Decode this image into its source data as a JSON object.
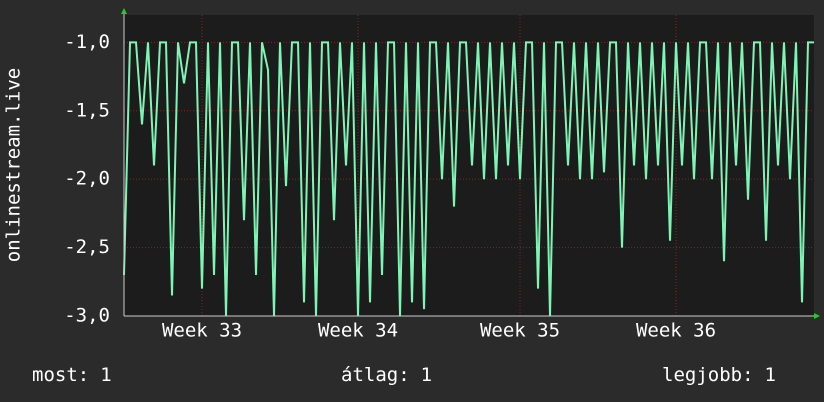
{
  "chart_data": {
    "type": "line",
    "ylabel": "onlinestream.live",
    "color": "#7ff5b5",
    "values": [
      -2.7,
      -1,
      -1,
      -1.6,
      -1,
      -1.9,
      -1,
      -1,
      -2.85,
      -1,
      -1.3,
      -1,
      -1,
      -2.8,
      -1,
      -2.7,
      -1,
      -3,
      -1,
      -1,
      -2.3,
      -1,
      -2.7,
      -1,
      -1.2,
      -3,
      -1,
      -2.05,
      -1,
      -1,
      -2.9,
      -1,
      -3,
      -1,
      -1,
      -2.3,
      -1,
      -1.9,
      -1,
      -3,
      -1,
      -2.9,
      -1,
      -2.7,
      -1,
      -1,
      -3,
      -1,
      -2.9,
      -1,
      -2.95,
      -1,
      -1,
      -2.0,
      -1,
      -2.2,
      -1,
      -1,
      -1.9,
      -1,
      -2.0,
      -1,
      -2.0,
      -1,
      -1.9,
      -1,
      -2.0,
      -1,
      -1,
      -2.8,
      -1,
      -3,
      -1,
      -1,
      -1.9,
      -1,
      -2.0,
      -1,
      -2.0,
      -1,
      -1.95,
      -1,
      -1,
      -2.5,
      -1,
      -1.9,
      -1,
      -2.0,
      -1,
      -1.9,
      -1,
      -2.45,
      -1,
      -1.9,
      -1,
      -2.0,
      -1,
      -1,
      -2.0,
      -1,
      -2.6,
      -1,
      -1.9,
      -1,
      -2.15,
      -1,
      -1,
      -2.45,
      -1,
      -1.9,
      -1,
      -2.0,
      -1,
      -2.9,
      -1,
      -1
    ],
    "xlim": [
      0,
      115
    ],
    "xticks": [
      {
        "value": 13,
        "label": "Week 33"
      },
      {
        "value": 39,
        "label": "Week 34"
      },
      {
        "value": 66,
        "label": "Week 35"
      },
      {
        "value": 92,
        "label": "Week 36"
      }
    ],
    "ylim": [
      -3.0,
      -0.8
    ],
    "yticks": [
      {
        "value": -3.0,
        "label": "-3,0"
      },
      {
        "value": -2.5,
        "label": "-2,5"
      },
      {
        "value": -2.0,
        "label": "-2,0"
      },
      {
        "value": -1.5,
        "label": "-1,5"
      },
      {
        "value": -1.0,
        "label": "-1,0"
      }
    ],
    "grid": true,
    "stats": [
      {
        "label": "most:",
        "value": 1
      },
      {
        "label": "átlag:",
        "value": 1
      },
      {
        "label": "legjobb:",
        "value": 1
      }
    ]
  }
}
